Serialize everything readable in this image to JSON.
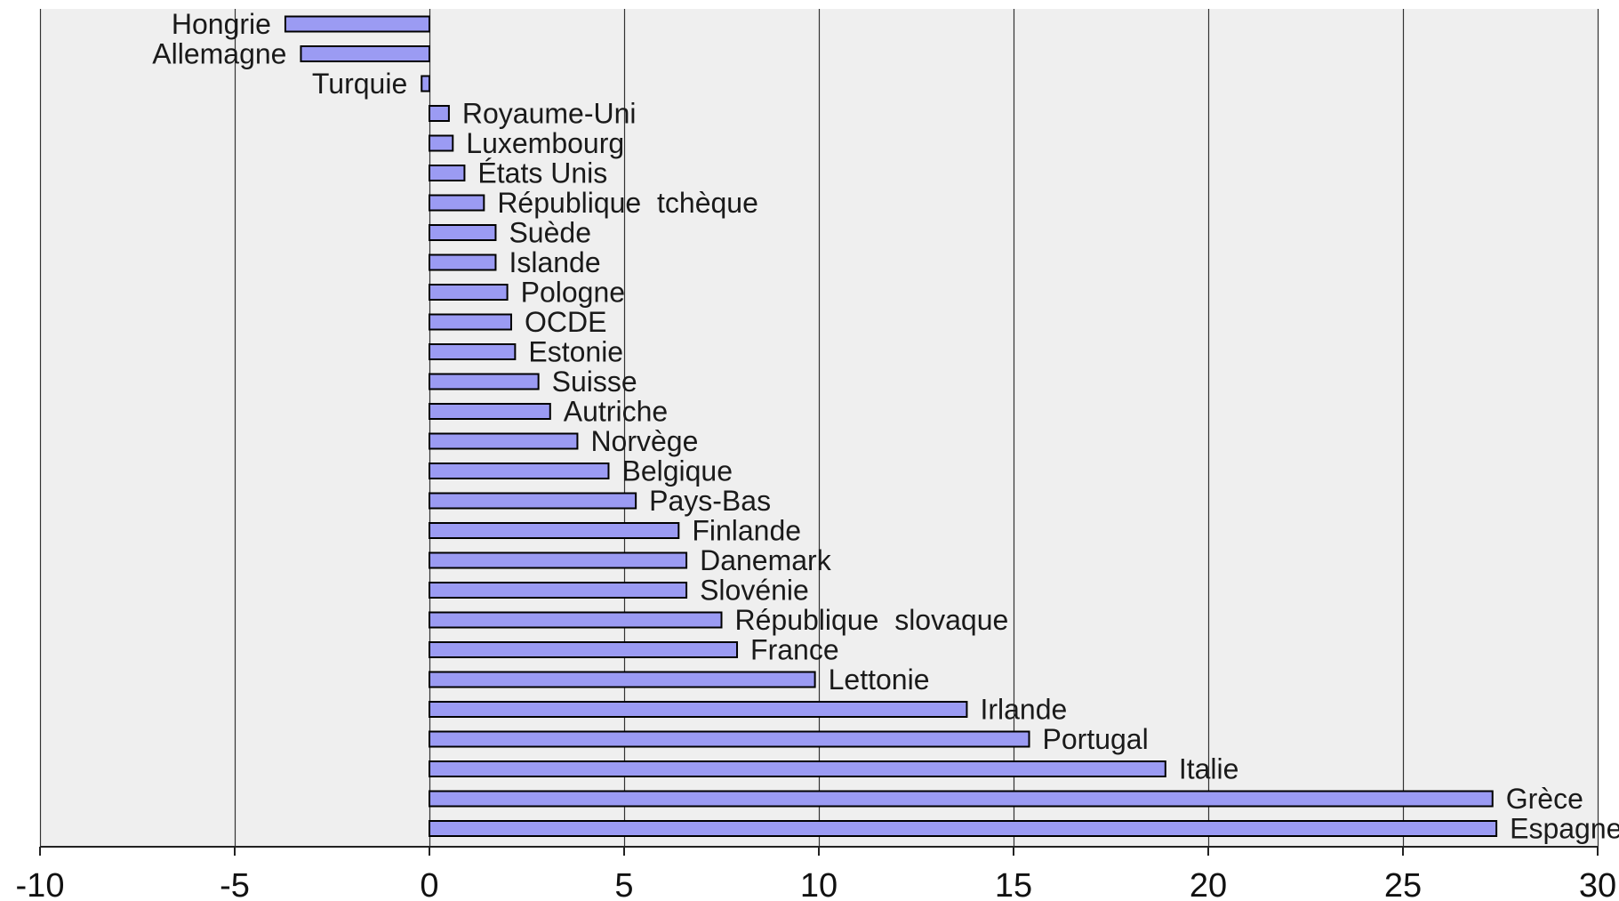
{
  "chart_data": {
    "type": "bar",
    "orientation": "horizontal",
    "title": "",
    "xlabel": "",
    "ylabel": "",
    "xlim": [
      -10,
      30
    ],
    "x_ticks": [
      -10,
      -5,
      0,
      5,
      10,
      15,
      20,
      25,
      30
    ],
    "x_tick_labels": [
      "-10",
      "-5",
      "0",
      "5",
      "10",
      "15",
      "20",
      "25",
      "30"
    ],
    "grid": "vertical",
    "legend": "none",
    "categories": [
      "Hongrie",
      "Allemagne",
      "Turquie",
      "Royaume-Uni",
      "Luxembourg",
      "États Unis",
      "République  tchèque",
      "Suède",
      "Islande",
      "Pologne",
      "OCDE",
      "Estonie",
      "Suisse",
      "Autriche",
      "Norvège",
      "Belgique",
      "Pays-Bas",
      "Finlande",
      "Danemark",
      "Slovénie",
      "République  slovaque",
      "France",
      "Lettonie",
      "Irlande",
      "Portugal",
      "Italie",
      "Grèce",
      "Espagne"
    ],
    "values": [
      -3.7,
      -3.3,
      -0.2,
      0.5,
      0.6,
      0.9,
      1.4,
      1.7,
      1.7,
      2.0,
      2.1,
      2.2,
      2.8,
      3.1,
      3.8,
      4.6,
      5.3,
      6.4,
      6.6,
      6.6,
      7.5,
      7.9,
      9.9,
      13.8,
      15.4,
      18.9,
      27.3,
      27.4
    ],
    "colors": {
      "bar_fill": "#9b9bf3",
      "bar_stroke": "#000000",
      "plot_background": "#efefef",
      "grid": "#333333",
      "axis": "#222222"
    }
  }
}
